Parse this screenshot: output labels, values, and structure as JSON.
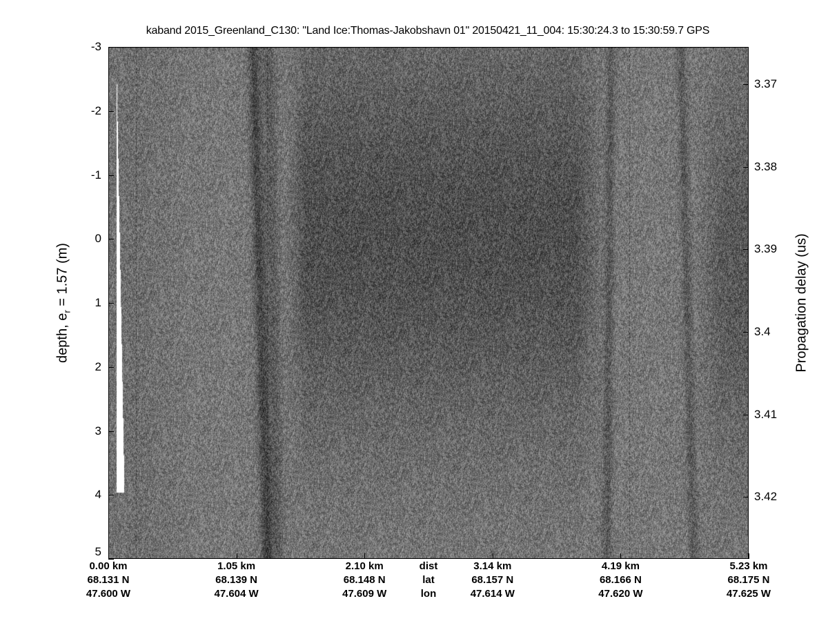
{
  "chart_data": {
    "type": "heatmap",
    "title": "kaband 2015_Greenland_C130: \"Land Ice:Thomas-Jakobshavn 01\"  20150421_11_004: 15:30:24.3 to 15:30:59.7 GPS",
    "ylabel_main": "depth, e",
    "ylabel_sub": "r",
    "ylabel_tail": " = 1.57 (m)",
    "y2label": "Propagation delay (us)",
    "ylim": [
      -3,
      5
    ],
    "y_reversed": true,
    "y_ticks": [
      "-3",
      "-2",
      "-1",
      "0",
      "1",
      "2",
      "3",
      "4",
      "5"
    ],
    "y2lim": [
      3.3655,
      3.4275
    ],
    "y2_ticks": [
      "3.37",
      "3.38",
      "3.39",
      "3.4",
      "3.41",
      "3.42"
    ],
    "x_row_labels": [
      "dist",
      "lat",
      "lon"
    ],
    "x_ticks": [
      {
        "dist": "0.00 km",
        "lat": "68.131 N",
        "lon": "47.600 W"
      },
      {
        "dist": "1.05 km",
        "lat": "68.139 N",
        "lon": "47.604 W"
      },
      {
        "dist": "2.10 km",
        "lat": "68.148 N",
        "lon": "47.609 W"
      },
      {
        "dist": "3.14 km",
        "lat": "68.157 N",
        "lon": "47.614 W"
      },
      {
        "dist": "4.19 km",
        "lat": "68.166 N",
        "lon": "47.620 W"
      },
      {
        "dist": "5.23 km",
        "lat": "68.175 N",
        "lon": "47.625 W"
      }
    ],
    "xlim_km": [
      0,
      5.23
    ],
    "colormap": "gray",
    "grid": false
  }
}
